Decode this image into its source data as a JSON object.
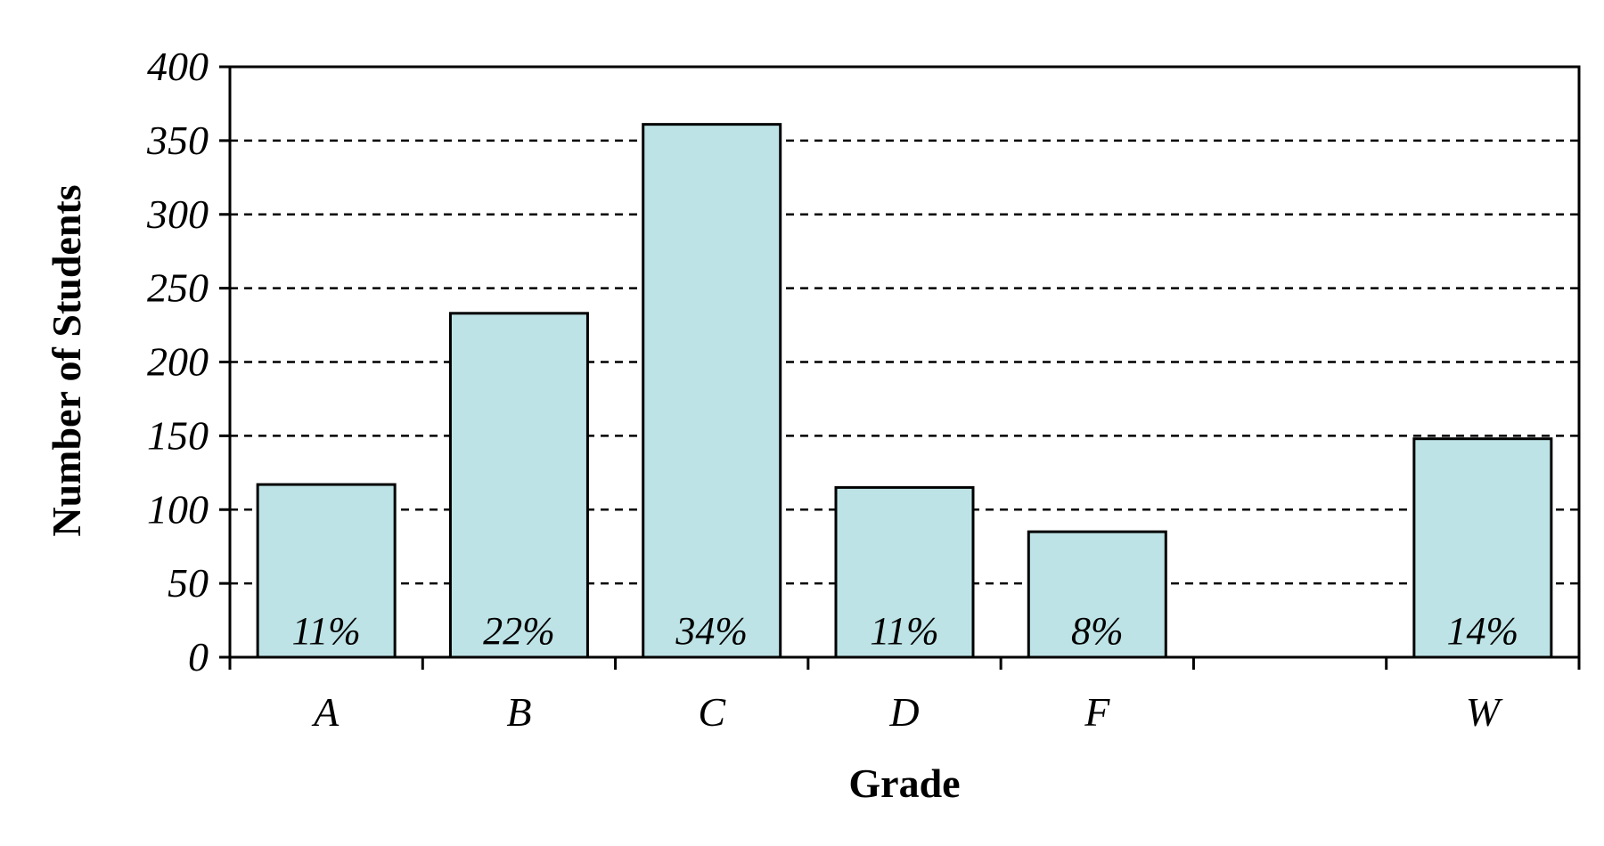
{
  "chart_data": {
    "type": "bar",
    "title": "",
    "xlabel": "Grade",
    "ylabel": "Number of Students",
    "ylim": [
      0,
      400
    ],
    "yticks": [
      0,
      50,
      100,
      150,
      200,
      250,
      300,
      350,
      400
    ],
    "ytick_labels": [
      "0",
      "50",
      "100",
      "150",
      "200",
      "250",
      "300",
      "350",
      "400"
    ],
    "categories": [
      "A",
      "B",
      "C",
      "D",
      "F",
      "",
      "W"
    ],
    "values": [
      117,
      233,
      361,
      115,
      85,
      null,
      148
    ],
    "data_labels": [
      "11%",
      "22%",
      "34%",
      "11%",
      "8%",
      "",
      "14%"
    ],
    "grid": "dashed horizontal",
    "legend": "none",
    "colors": {
      "bar_fill": "#bde3e6",
      "bar_stroke": "#000000",
      "grid": "#000000",
      "axis": "#000000"
    }
  }
}
